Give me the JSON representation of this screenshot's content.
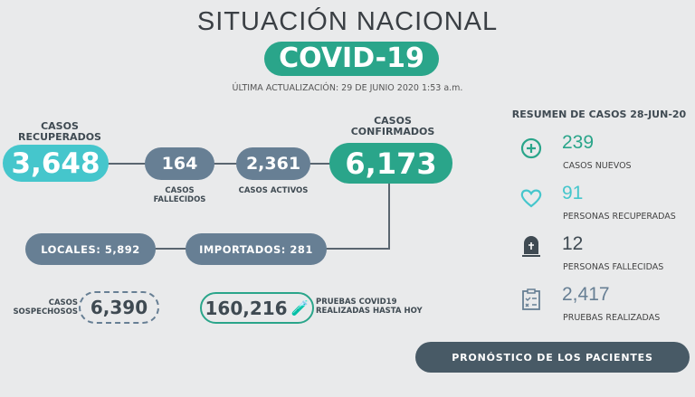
{
  "header": {
    "title": "SITUACIÓN NACIONAL",
    "badge": "COVID-19",
    "updated": "ÚLTIMA ACTUALIZACIÓN: 29 DE JUNIO 2020 1:53 a.m."
  },
  "flow": {
    "recuperados": {
      "label": "CASOS RECUPERADOS",
      "value": "3,648"
    },
    "fallecidos": {
      "label": "CASOS FALLECIDOS",
      "value": "164"
    },
    "activos": {
      "label": "CASOS ACTIVOS",
      "value": "2,361"
    },
    "confirmados": {
      "label": "CASOS CONFIRMADOS",
      "value": "6,173"
    },
    "locales": "LOCALES: 5,892",
    "importados": "IMPORTADOS: 281",
    "sospechosos": {
      "label": "CASOS SOSPECHOSOS",
      "value": "6,390"
    },
    "pruebas": {
      "label": "PRUEBAS COVID19 REALIZADAS HASTA HOY",
      "value": "160,216"
    }
  },
  "summary": {
    "title": "RESUMEN DE CASOS 28-JUN-20",
    "items": [
      {
        "icon": "plus-circle-icon",
        "value": "239",
        "label": "CASOS NUEVOS",
        "color": "#2aa58a"
      },
      {
        "icon": "heart-icon",
        "value": "91",
        "label": "PERSONAS RECUPERADAS",
        "color": "#45c6cc"
      },
      {
        "icon": "tombstone-icon",
        "value": "12",
        "label": "PERSONAS FALLECIDAS",
        "color": "#3f4a52"
      },
      {
        "icon": "clipboard-checklist-icon",
        "value": "2,417",
        "label": "PRUEBAS REALIZADAS",
        "color": "#677f94"
      }
    ]
  },
  "colors": {
    "teal": "#2aa58a",
    "cyan": "#45c6cc",
    "slate": "#677f94",
    "dark": "#485a66",
    "background": "#e9eaeb"
  },
  "button": {
    "label": "PRONÓSTICO DE LOS PACIENTES"
  }
}
